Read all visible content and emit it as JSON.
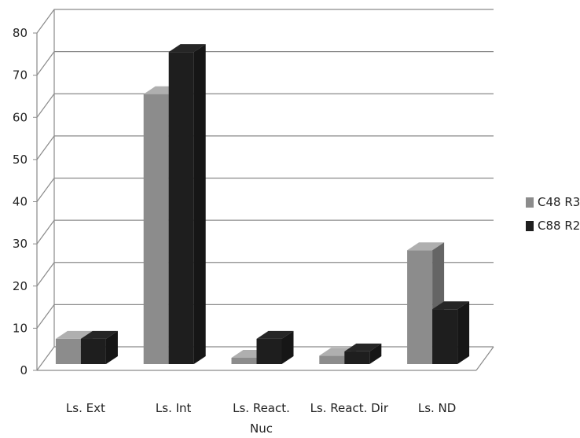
{
  "chart_data": {
    "type": "bar",
    "three_d": true,
    "categories": [
      "Ls. Ext",
      "Ls. Int",
      "Ls. React. Nuc",
      "Ls. React. Dir",
      "Ls. ND"
    ],
    "category_lines": [
      [
        "Ls. Ext"
      ],
      [
        "Ls. Int"
      ],
      [
        "Ls. React.",
        "Nuc"
      ],
      [
        "Ls. React. Dir"
      ],
      [
        "Ls. ND"
      ]
    ],
    "series": [
      {
        "name": "C48 R3",
        "color": "#8c8c8c",
        "values": [
          6,
          64,
          1.5,
          2,
          27
        ]
      },
      {
        "name": "C88 R2",
        "color": "#1e1e1e",
        "values": [
          6,
          74,
          6,
          3,
          13
        ]
      }
    ],
    "ylim": [
      0,
      80
    ],
    "yticks": [
      0,
      10,
      20,
      30,
      40,
      50,
      60,
      70,
      80
    ],
    "grid": true,
    "legend_position": "right",
    "title": "",
    "xlabel": "",
    "ylabel": ""
  }
}
